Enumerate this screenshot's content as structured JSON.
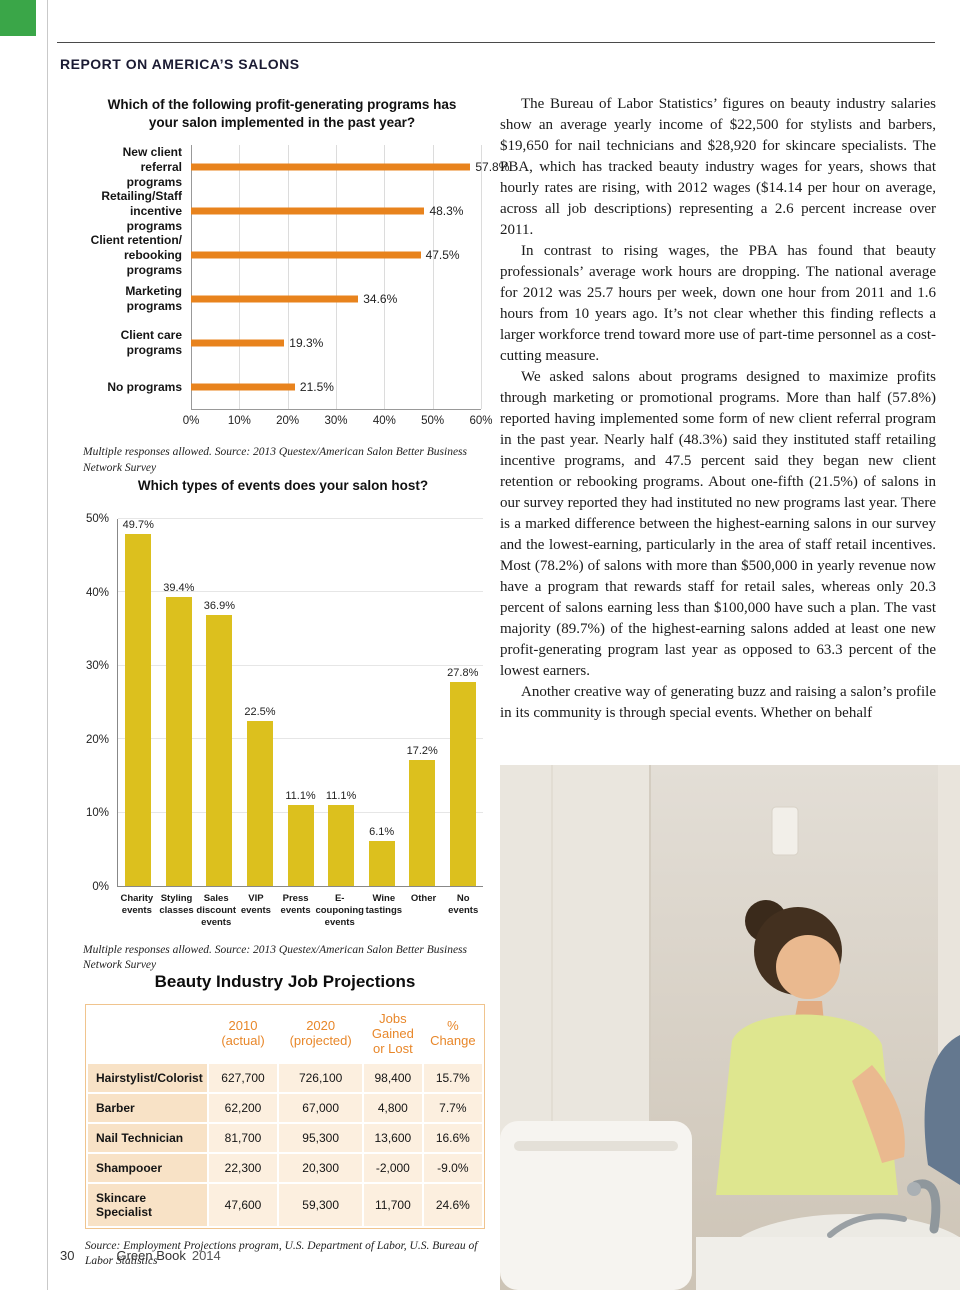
{
  "header": {
    "title": "REPORT ON AMERICA’S SALONS"
  },
  "chart_data": [
    {
      "type": "bar",
      "orientation": "horizontal",
      "title": "Which of the following profit-generating programs has your salon implemented in the past year?",
      "categories": [
        "New client referral programs",
        "Retailing/Staff incentive programs",
        "Client retention/ rebooking programs",
        "Marketing programs",
        "Client care programs",
        "No programs"
      ],
      "values": [
        57.8,
        48.3,
        47.5,
        34.6,
        19.3,
        21.5
      ],
      "xlim": [
        0,
        60
      ],
      "x_ticks": [
        "0%",
        "10%",
        "20%",
        "30%",
        "40%",
        "50%",
        "60%"
      ],
      "bar_color": "#e8831d",
      "grid": true,
      "source": "Multiple responses allowed. Source: 2013 Questex/American Salon Better Business Network Survey"
    },
    {
      "type": "bar",
      "orientation": "vertical",
      "title": "Which types of events does your salon host?",
      "categories": [
        "Charity events",
        "Styling classes",
        "Sales discount events",
        "VIP events",
        "Press events",
        "E-couponing events",
        "Wine tastings",
        "Other",
        "No events"
      ],
      "values": [
        49.7,
        39.4,
        36.9,
        22.5,
        11.1,
        11.1,
        6.1,
        17.2,
        27.8
      ],
      "ylim": [
        0,
        50
      ],
      "y_ticks": [
        "0%",
        "10%",
        "20%",
        "30%",
        "40%",
        "50%"
      ],
      "bar_color": "#dcc01e",
      "grid": true,
      "source": "Multiple responses allowed. Source: 2013 Questex/American Salon Better Business Network Survey"
    }
  ],
  "article": {
    "paragraphs": [
      "The Bureau of Labor Statistics’ figures on beauty industry salaries show an average yearly income of $22,500 for stylists and barbers, $19,650 for nail technicians and $28,920 for skincare specialists. The PBA, which has tracked beauty industry wages for years, shows that hourly rates are rising, with 2012 wages ($14.14 per hour on average, across all job descriptions) representing a 2.6 percent increase over 2011.",
      "In contrast to rising wages, the PBA has found that beauty professionals’ average work hours are dropping. The national average for 2012 was 25.7 hours per week, down one hour from 2011 and 1.6 hours from 10 years ago. It’s not clear whether this finding reflects a larger workforce trend toward more use of part-time personnel as a cost-cutting measure.",
      "We asked salons about programs designed to maximize profits through marketing or promotional programs. More than half (57.8%) reported having implemented some form of new client referral program in the past year. Nearly half (48.3%) said they instituted staff retailing incentive programs, and 47.5 percent said they began new client retention or rebooking programs. About one-fifth (21.5%) of salons in our survey reported they had instituted no new programs last year. There is a marked difference between the highest-earning salons in our survey and the lowest-earning, particularly in the area of staff retail incentives. Most (78.2%) of salons with more than $500,000 in yearly revenue now have a program that rewards staff for retail sales, whereas only 20.3 percent of salons earning less than $100,000 have such a plan. The vast majority (89.7%) of the highest-earning salons added at least one new profit-generating program last year as opposed to 63.3 percent of the lowest earners.",
      "Another creative way of generating buzz and raising a salon’s profile in its community is through special events. Whether on behalf"
    ]
  },
  "job_table": {
    "title": "Beauty Industry Job Projections",
    "col_headers": [
      "2010 (actual)",
      "2020 (projected)",
      "Jobs Gained or Lost",
      "% Change"
    ],
    "rows": [
      {
        "label": "Hairstylist/Colorist",
        "values": [
          "627,700",
          "726,100",
          "98,400",
          "15.7%"
        ]
      },
      {
        "label": "Barber",
        "values": [
          "62,200",
          "67,000",
          "4,800",
          "7.7%"
        ]
      },
      {
        "label": "Nail Technician",
        "values": [
          "81,700",
          "95,300",
          "13,600",
          "16.6%"
        ]
      },
      {
        "label": "Shampooer",
        "values": [
          "22,300",
          "20,300",
          "-2,000",
          "-9.0%"
        ]
      },
      {
        "label": "Skincare Specialist",
        "values": [
          "47,600",
          "59,300",
          "11,700",
          "24.6%"
        ]
      }
    ],
    "source": "Source: Employment Projections program, U.S. Department of Labor, U.S. Bureau of Labor Statistics"
  },
  "footer": {
    "page_number": "30",
    "book_title": "Green Book",
    "year": "2014"
  },
  "colors": {
    "accent_orange": "#e8831d",
    "accent_gold": "#dcc01e",
    "brand_green": "#3aa648",
    "table_header_orange": "#e8872a"
  }
}
